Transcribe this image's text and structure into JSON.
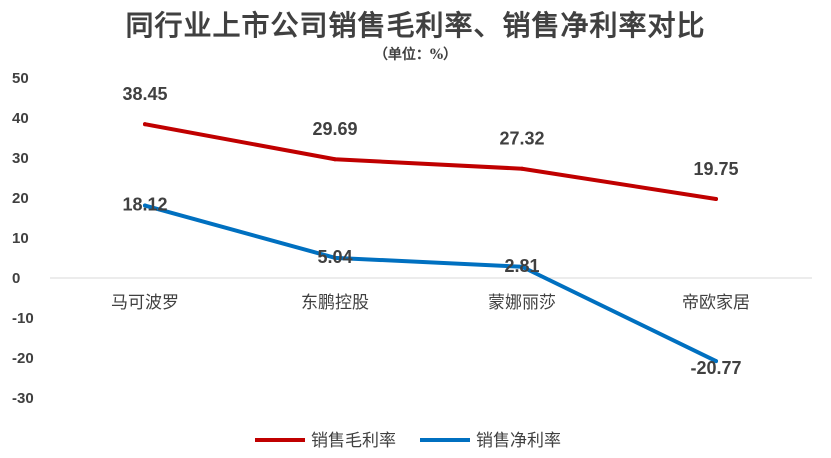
{
  "chart_data": {
    "type": "line",
    "title": "同行业上市公司销售毛利率、销售净利率对比",
    "subtitle": "（单位：%）",
    "categories": [
      "马可波罗",
      "东鹏控股",
      "蒙娜丽莎",
      "帝欧家居"
    ],
    "series": [
      {
        "name": "销售毛利率",
        "values": [
          38.45,
          29.69,
          27.32,
          19.75
        ],
        "color": "#C00000"
      },
      {
        "name": "销售净利率",
        "values": [
          18.12,
          5.04,
          2.81,
          -20.77
        ],
        "color": "#0070C0"
      }
    ],
    "yticks": [
      50,
      40,
      30,
      20,
      10,
      0,
      -10,
      -20,
      -30
    ],
    "ylim": [
      -30,
      50
    ],
    "grid": false,
    "legend": "bottom"
  }
}
